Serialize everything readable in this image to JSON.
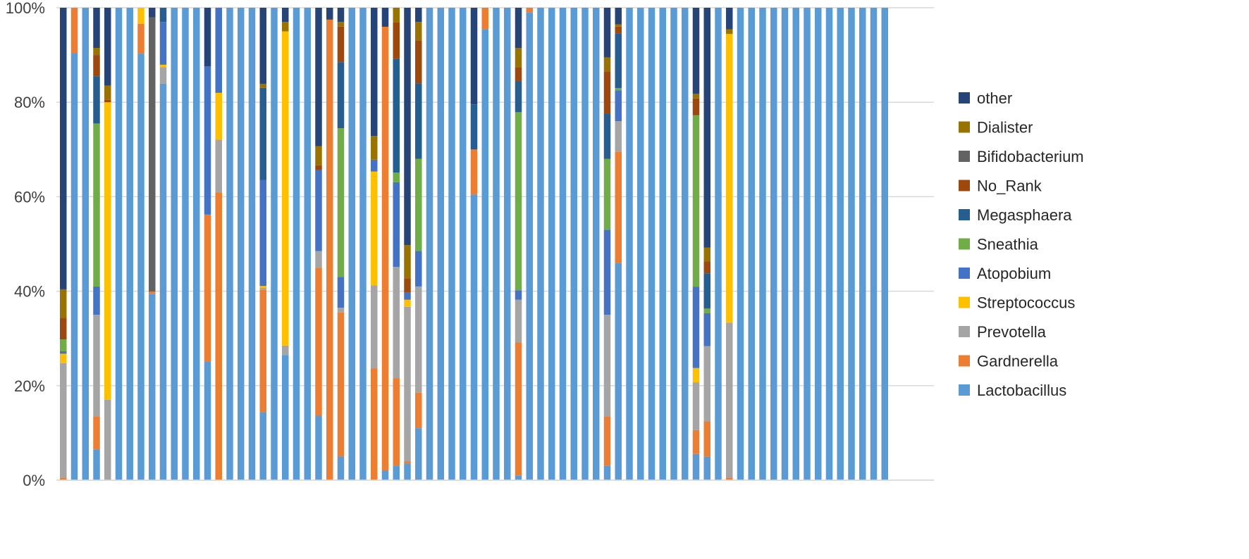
{
  "chart_data": {
    "type": "bar",
    "stacked": "percent",
    "title": "",
    "xlabel": "",
    "ylabel": "",
    "ylim": [
      0,
      100
    ],
    "yticks": [
      "0%",
      "20%",
      "40%",
      "60%",
      "80%",
      "100%"
    ],
    "grid": true,
    "legend_position": "right",
    "sample_count": 75,
    "series": [
      {
        "name": "Lactobacillus",
        "color": "#5B9BD5",
        "values": [
          0,
          90,
          99,
          6.5,
          0,
          99,
          100,
          93,
          39,
          83.5,
          100,
          100,
          92.5,
          38.5,
          0,
          99.5,
          100,
          99.5,
          17,
          100,
          26.5,
          100,
          100,
          13.5,
          0,
          5,
          100,
          100,
          0,
          2,
          3,
          3.5,
          11,
          100,
          100,
          99.5,
          99,
          66.5,
          95,
          100,
          100,
          1,
          97.5,
          100,
          99.5,
          100,
          100,
          99,
          99,
          3,
          46,
          96.5,
          100,
          99.5,
          100,
          99,
          100,
          5.5,
          5,
          99.5,
          0,
          99.5,
          100,
          100,
          100,
          100,
          100,
          100,
          100,
          100,
          100,
          100,
          100,
          100,
          100
        ]
      },
      {
        "name": "Gardnerella",
        "color": "#ED7D31",
        "values": [
          0.5,
          9.5,
          0,
          7,
          0,
          0,
          0,
          6.5,
          0.5,
          0,
          0,
          0,
          0,
          47.5,
          49,
          0,
          0,
          0,
          30.5,
          0,
          0,
          0,
          0,
          31,
          97,
          30.5,
          0,
          0,
          23.5,
          93.5,
          18,
          0.5,
          7.5,
          0,
          0,
          0,
          0,
          10.5,
          4.5,
          0,
          0,
          28,
          1,
          0,
          0,
          0,
          0,
          0,
          0,
          10.5,
          23.5,
          0,
          0,
          0,
          0,
          0,
          0,
          5,
          7.5,
          0,
          0.5,
          0,
          0,
          0,
          0,
          0,
          0,
          0,
          0,
          0,
          0,
          0,
          0,
          0,
          0
        ]
      },
      {
        "name": "Prevotella",
        "color": "#A5A5A5",
        "values": [
          24,
          0,
          0,
          21.5,
          17,
          0,
          0,
          0,
          0,
          3.5,
          0,
          0,
          0,
          0,
          9,
          0,
          0,
          0,
          0.5,
          0,
          2,
          0,
          0,
          3.5,
          0,
          1,
          0,
          0,
          17.5,
          0,
          23,
          32.5,
          22.5,
          0,
          0,
          0,
          0,
          0,
          0,
          0,
          0,
          9,
          0,
          0,
          0,
          0,
          0,
          0,
          0,
          21.5,
          6.5,
          0,
          0,
          0,
          0,
          0,
          0,
          10,
          16,
          0,
          32.5,
          0,
          0,
          0,
          0,
          0,
          0,
          0,
          0,
          0,
          0,
          0,
          0,
          0,
          0
        ]
      },
      {
        "name": "Streptococcus",
        "color": "#FFC000",
        "values": [
          2,
          0,
          0,
          0,
          63,
          0,
          0,
          3.5,
          0,
          0.5,
          0,
          0,
          0,
          0,
          8,
          0,
          0,
          0,
          0.5,
          0,
          66.5,
          0,
          0,
          0,
          0,
          0,
          0,
          0,
          24,
          0,
          0,
          1.5,
          0,
          0,
          0,
          0,
          0,
          0,
          0,
          0,
          0,
          0,
          0,
          0,
          0,
          0,
          0,
          0,
          0,
          0,
          0,
          0,
          0,
          0,
          0,
          0,
          0,
          3,
          0,
          0,
          60.5,
          0,
          0,
          0,
          0,
          0,
          0,
          0,
          0,
          0,
          0,
          0,
          0,
          0,
          0
        ]
      },
      {
        "name": "Atopobium",
        "color": "#4472C4",
        "values": [
          0.5,
          0,
          0,
          6,
          0,
          0,
          0,
          0,
          0,
          9,
          0,
          0,
          0,
          48,
          14.5,
          0,
          0,
          0,
          26.5,
          0,
          0,
          0,
          0,
          17,
          0,
          6.5,
          0,
          0,
          2.5,
          0,
          17.5,
          1.5,
          7.5,
          0,
          0,
          0,
          0,
          0,
          0,
          0,
          0,
          2,
          0,
          0,
          0,
          0,
          0,
          0,
          0,
          18,
          6.5,
          0,
          0,
          0,
          0,
          0,
          0,
          17,
          7,
          0,
          0,
          0,
          0,
          0,
          0,
          0,
          0,
          0,
          0,
          0,
          0,
          0,
          0,
          0,
          0
        ]
      },
      {
        "name": "Sneathia",
        "color": "#70AD47",
        "values": [
          2.5,
          0,
          0,
          34.5,
          0,
          0,
          0,
          0,
          0,
          0,
          0,
          0,
          0,
          0,
          0,
          0,
          0,
          0,
          0,
          0,
          0,
          0,
          0,
          0,
          0,
          31.5,
          0,
          0,
          0,
          0,
          2,
          0,
          19.5,
          0,
          0,
          0,
          0,
          0,
          0,
          0,
          0,
          37.5,
          0,
          0,
          0,
          0,
          0,
          0,
          0,
          15,
          0.5,
          0,
          0,
          0,
          0,
          0,
          0,
          36,
          1,
          0,
          0,
          0,
          0,
          0,
          0,
          0,
          0,
          0,
          0,
          0,
          0,
          0,
          0,
          0,
          0
        ]
      },
      {
        "name": "Megasphaera",
        "color": "#255E91",
        "values": [
          0,
          0,
          0,
          10,
          0,
          0,
          0,
          0,
          0,
          3,
          0,
          0,
          0,
          0,
          0,
          0,
          0,
          0,
          23,
          0,
          0,
          0,
          0,
          0,
          0,
          14,
          0,
          0,
          0,
          0,
          23.5,
          0,
          16,
          0,
          0,
          0,
          0,
          10.5,
          0,
          0,
          0,
          6.5,
          0,
          0,
          0,
          0,
          0,
          0,
          0,
          9.5,
          11.5,
          0,
          0,
          0,
          0,
          0,
          0,
          0,
          7.5,
          0,
          0,
          0,
          0,
          0,
          0,
          0,
          0,
          0,
          0,
          0,
          0,
          0,
          0,
          0,
          0
        ]
      },
      {
        "name": "No_Rank",
        "color": "#9E480E",
        "values": [
          4.5,
          0,
          0,
          4.5,
          0.5,
          0,
          0,
          0,
          0,
          0,
          0,
          0,
          0,
          0,
          0,
          0,
          0,
          0,
          0,
          0,
          0,
          0,
          0,
          1,
          0,
          7.5,
          0,
          0,
          0,
          0,
          7.5,
          3,
          9,
          0,
          0,
          0,
          0,
          0,
          0,
          0,
          0,
          3,
          0,
          0,
          0,
          0,
          0,
          0,
          0,
          9,
          1.5,
          0,
          0,
          0,
          0,
          0,
          0,
          3.5,
          2.5,
          0,
          0,
          0,
          0,
          0,
          0,
          0,
          0,
          0,
          0,
          0,
          0,
          0,
          0,
          0,
          0
        ]
      },
      {
        "name": "Bifidobacterium",
        "color": "#636363",
        "values": [
          0,
          0,
          0,
          0,
          0,
          0,
          0,
          0,
          57.5,
          0,
          0,
          0,
          0,
          0,
          0,
          0,
          0,
          0,
          0,
          0,
          0,
          0,
          0,
          0,
          0,
          0,
          0,
          0,
          0,
          0,
          0,
          0,
          0,
          0,
          0,
          0,
          0,
          0,
          0,
          0,
          0,
          0,
          0,
          0,
          0,
          0,
          0,
          0,
          0,
          0,
          0,
          0,
          0,
          0,
          0,
          0,
          0,
          0,
          0,
          0,
          0,
          0,
          0,
          0,
          0,
          0,
          0,
          0,
          0,
          0,
          0,
          0,
          0,
          0,
          0
        ]
      },
      {
        "name": "Dialister",
        "color": "#997300",
        "values": [
          6,
          0,
          0,
          1.5,
          3,
          0,
          0,
          0,
          0,
          0,
          0,
          0,
          0,
          0,
          0,
          0,
          0,
          0,
          1,
          0,
          2,
          0,
          0,
          4,
          0,
          1,
          0,
          0,
          5,
          0,
          3,
          7,
          4,
          0,
          0,
          0,
          0,
          0,
          0,
          0,
          0,
          4,
          0,
          0,
          0,
          0,
          0,
          0,
          0,
          3,
          0.5,
          0,
          0,
          0,
          0,
          0,
          0,
          1,
          3,
          0,
          1,
          0,
          0,
          0,
          0,
          0,
          0,
          0,
          0,
          0,
          0,
          0,
          0,
          0,
          0
        ]
      },
      {
        "name": "other",
        "color": "#264478",
        "values": [
          59,
          0,
          0,
          8.5,
          16.5,
          0,
          0,
          0,
          2,
          0,
          0,
          0,
          0,
          19,
          0,
          0,
          0,
          0,
          19,
          0,
          3,
          0,
          0,
          29,
          2.5,
          3,
          0,
          0,
          27,
          4,
          0,
          50,
          3,
          0,
          0,
          0,
          0,
          22.5,
          0,
          0,
          0,
          8.5,
          0,
          0,
          0,
          0,
          0,
          0,
          0,
          10.5,
          3.5,
          0,
          0,
          0,
          0,
          0,
          0,
          18,
          51,
          0,
          4.5,
          0,
          0,
          0,
          0,
          0,
          0,
          0,
          0,
          0,
          0,
          0,
          0,
          0,
          0
        ]
      }
    ]
  }
}
